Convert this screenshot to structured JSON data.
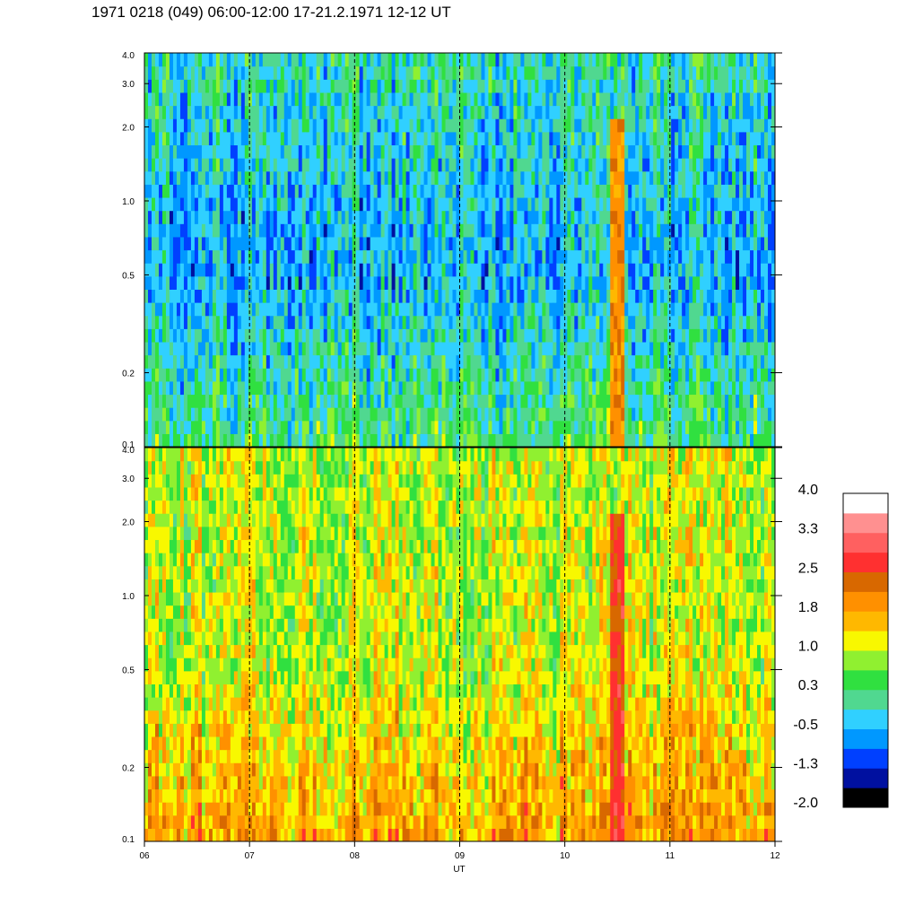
{
  "title": "1971 0218 (049) 06:00-12:00 17-21.2.1971 12-12 UT",
  "chart_data": [
    {
      "type": "heatmap",
      "panel": "upper",
      "x_range": [
        "06",
        "12"
      ],
      "y_range": [
        0.1,
        4.0
      ],
      "y_scale": "log",
      "y_tick_labels": [
        "0.1",
        "0.2",
        "0.5",
        "1.0",
        "2.0",
        "3.0",
        "4.0"
      ],
      "y_tick_values": [
        0.1,
        0.2,
        0.5,
        1.0,
        2.0,
        3.0,
        4.0
      ],
      "dominant_levels": {
        "low_freq": 0.3,
        "mid_freq": -0.5,
        "high_freq": 0.0
      },
      "burst_time": "10.5",
      "burst_level": 1.8
    },
    {
      "type": "heatmap",
      "panel": "lower",
      "x_range": [
        "06",
        "12"
      ],
      "y_range": [
        0.1,
        4.0
      ],
      "y_scale": "log",
      "y_tick_labels": [
        "0.1",
        "0.2",
        "0.5",
        "1.0",
        "2.0",
        "3.0",
        "4.0"
      ],
      "y_tick_values": [
        0.1,
        0.2,
        0.5,
        1.0,
        2.0,
        3.0,
        4.0
      ],
      "dominant_levels": {
        "low_freq": 1.8,
        "mid_freq": 1.0,
        "high_freq": 1.0
      },
      "burst_time": "10.5",
      "burst_level": 2.5
    }
  ],
  "x_axis": {
    "label": "UT",
    "ticks": [
      "06",
      "07",
      "08",
      "09",
      "10",
      "11",
      "12"
    ],
    "tick_values": [
      6,
      7,
      8,
      9,
      10,
      11,
      12
    ],
    "dashed_lines_at": [
      7,
      8,
      9,
      10,
      11
    ]
  },
  "colorbar": {
    "labels": [
      "4.0",
      "3.3",
      "2.5",
      "1.8",
      "1.0",
      "0.3",
      "-0.5",
      "-1.3",
      "-2.0"
    ],
    "colors": [
      "#000000",
      "#0010a0",
      "#0040ff",
      "#0098ff",
      "#30d0ff",
      "#50d890",
      "#30e040",
      "#90f030",
      "#f8f800",
      "#ffb800",
      "#ff9000",
      "#d86800",
      "#ff3030",
      "#ff6060",
      "#ff9090",
      "#ffffff"
    ]
  }
}
